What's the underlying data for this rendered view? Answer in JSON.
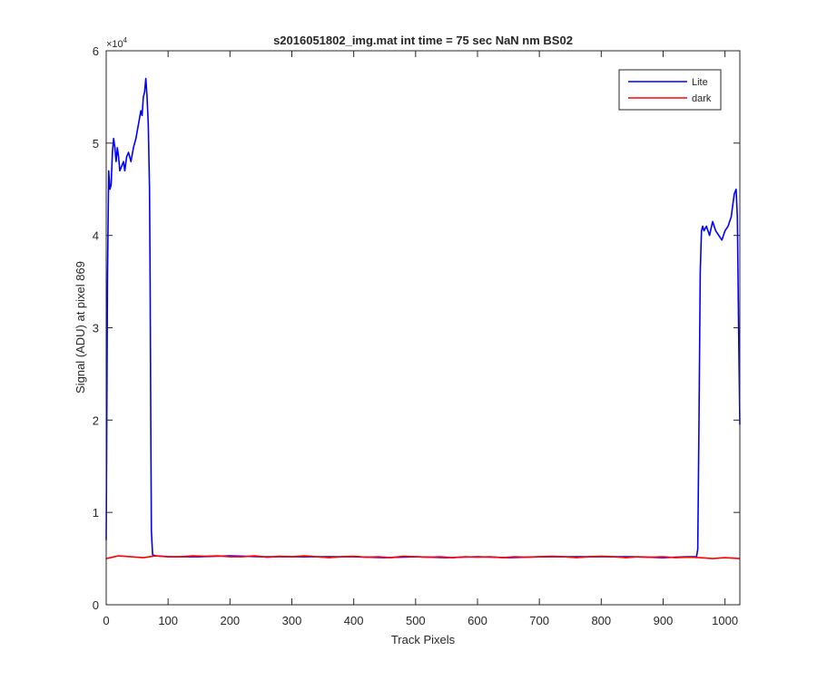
{
  "chart_data": {
    "type": "line",
    "title": "s2016051802_img.mat int time = 75 sec  NaN nm BS02",
    "xlabel": "Track Pixels",
    "ylabel": "Signal (ADU) at pixel 869",
    "y_exponent_label": "×10",
    "y_exponent": "4",
    "xlim": [
      0,
      1024
    ],
    "ylim": [
      0,
      60000
    ],
    "xticks": [
      0,
      100,
      200,
      300,
      400,
      500,
      600,
      700,
      800,
      900,
      1000
    ],
    "yticks": [
      0,
      10000,
      20000,
      30000,
      40000,
      50000,
      60000
    ],
    "ytick_labels": [
      "0",
      "1",
      "2",
      "3",
      "4",
      "5",
      "6"
    ],
    "grid": false,
    "legend_position": "top-right",
    "series": [
      {
        "name": "Lite",
        "color": "#0000ff",
        "x": [
          0,
          2,
          4,
          6,
          8,
          10,
          12,
          14,
          16,
          18,
          20,
          22,
          25,
          28,
          30,
          33,
          36,
          40,
          44,
          48,
          52,
          56,
          58,
          60,
          62,
          64,
          66,
          68,
          70,
          71,
          72,
          73,
          75,
          80,
          100,
          150,
          200,
          250,
          300,
          350,
          400,
          450,
          500,
          550,
          600,
          650,
          700,
          750,
          800,
          850,
          900,
          940,
          954,
          956,
          958,
          960,
          962,
          964,
          966,
          970,
          975,
          980,
          985,
          990,
          995,
          1000,
          1005,
          1010,
          1015,
          1018,
          1020,
          1022,
          1024
        ],
        "y": [
          7000,
          35000,
          47000,
          45000,
          45500,
          49000,
          50500,
          49500,
          48000,
          49500,
          48500,
          47000,
          47500,
          48000,
          47000,
          48500,
          49000,
          48000,
          49500,
          50500,
          52000,
          53500,
          53000,
          55000,
          55500,
          57000,
          55000,
          52000,
          45000,
          35000,
          20000,
          8000,
          5400,
          5300,
          5200,
          5200,
          5300,
          5200,
          5200,
          5200,
          5200,
          5100,
          5200,
          5100,
          5200,
          5100,
          5200,
          5200,
          5200,
          5200,
          5100,
          5200,
          5200,
          6000,
          20000,
          36000,
          40500,
          41000,
          40500,
          41000,
          40000,
          41500,
          40500,
          40000,
          39500,
          40500,
          41000,
          42000,
          44500,
          45000,
          42000,
          30000,
          19500
        ]
      },
      {
        "name": "dark",
        "color": "#ff0000",
        "x": [
          0,
          20,
          40,
          60,
          80,
          100,
          120,
          140,
          160,
          180,
          200,
          220,
          240,
          260,
          280,
          300,
          320,
          340,
          360,
          380,
          400,
          420,
          440,
          460,
          480,
          500,
          520,
          540,
          560,
          580,
          600,
          620,
          640,
          660,
          680,
          700,
          720,
          740,
          760,
          780,
          800,
          820,
          840,
          860,
          880,
          900,
          920,
          940,
          960,
          980,
          1000,
          1024
        ],
        "y": [
          5000,
          5300,
          5200,
          5100,
          5300,
          5200,
          5200,
          5300,
          5250,
          5300,
          5200,
          5200,
          5300,
          5150,
          5250,
          5200,
          5300,
          5200,
          5100,
          5200,
          5250,
          5150,
          5200,
          5100,
          5250,
          5200,
          5150,
          5200,
          5100,
          5200,
          5150,
          5200,
          5100,
          5200,
          5150,
          5200,
          5250,
          5200,
          5100,
          5200,
          5250,
          5200,
          5100,
          5200,
          5150,
          5200,
          5100,
          5150,
          5100,
          5000,
          5100,
          5000
        ]
      }
    ]
  }
}
